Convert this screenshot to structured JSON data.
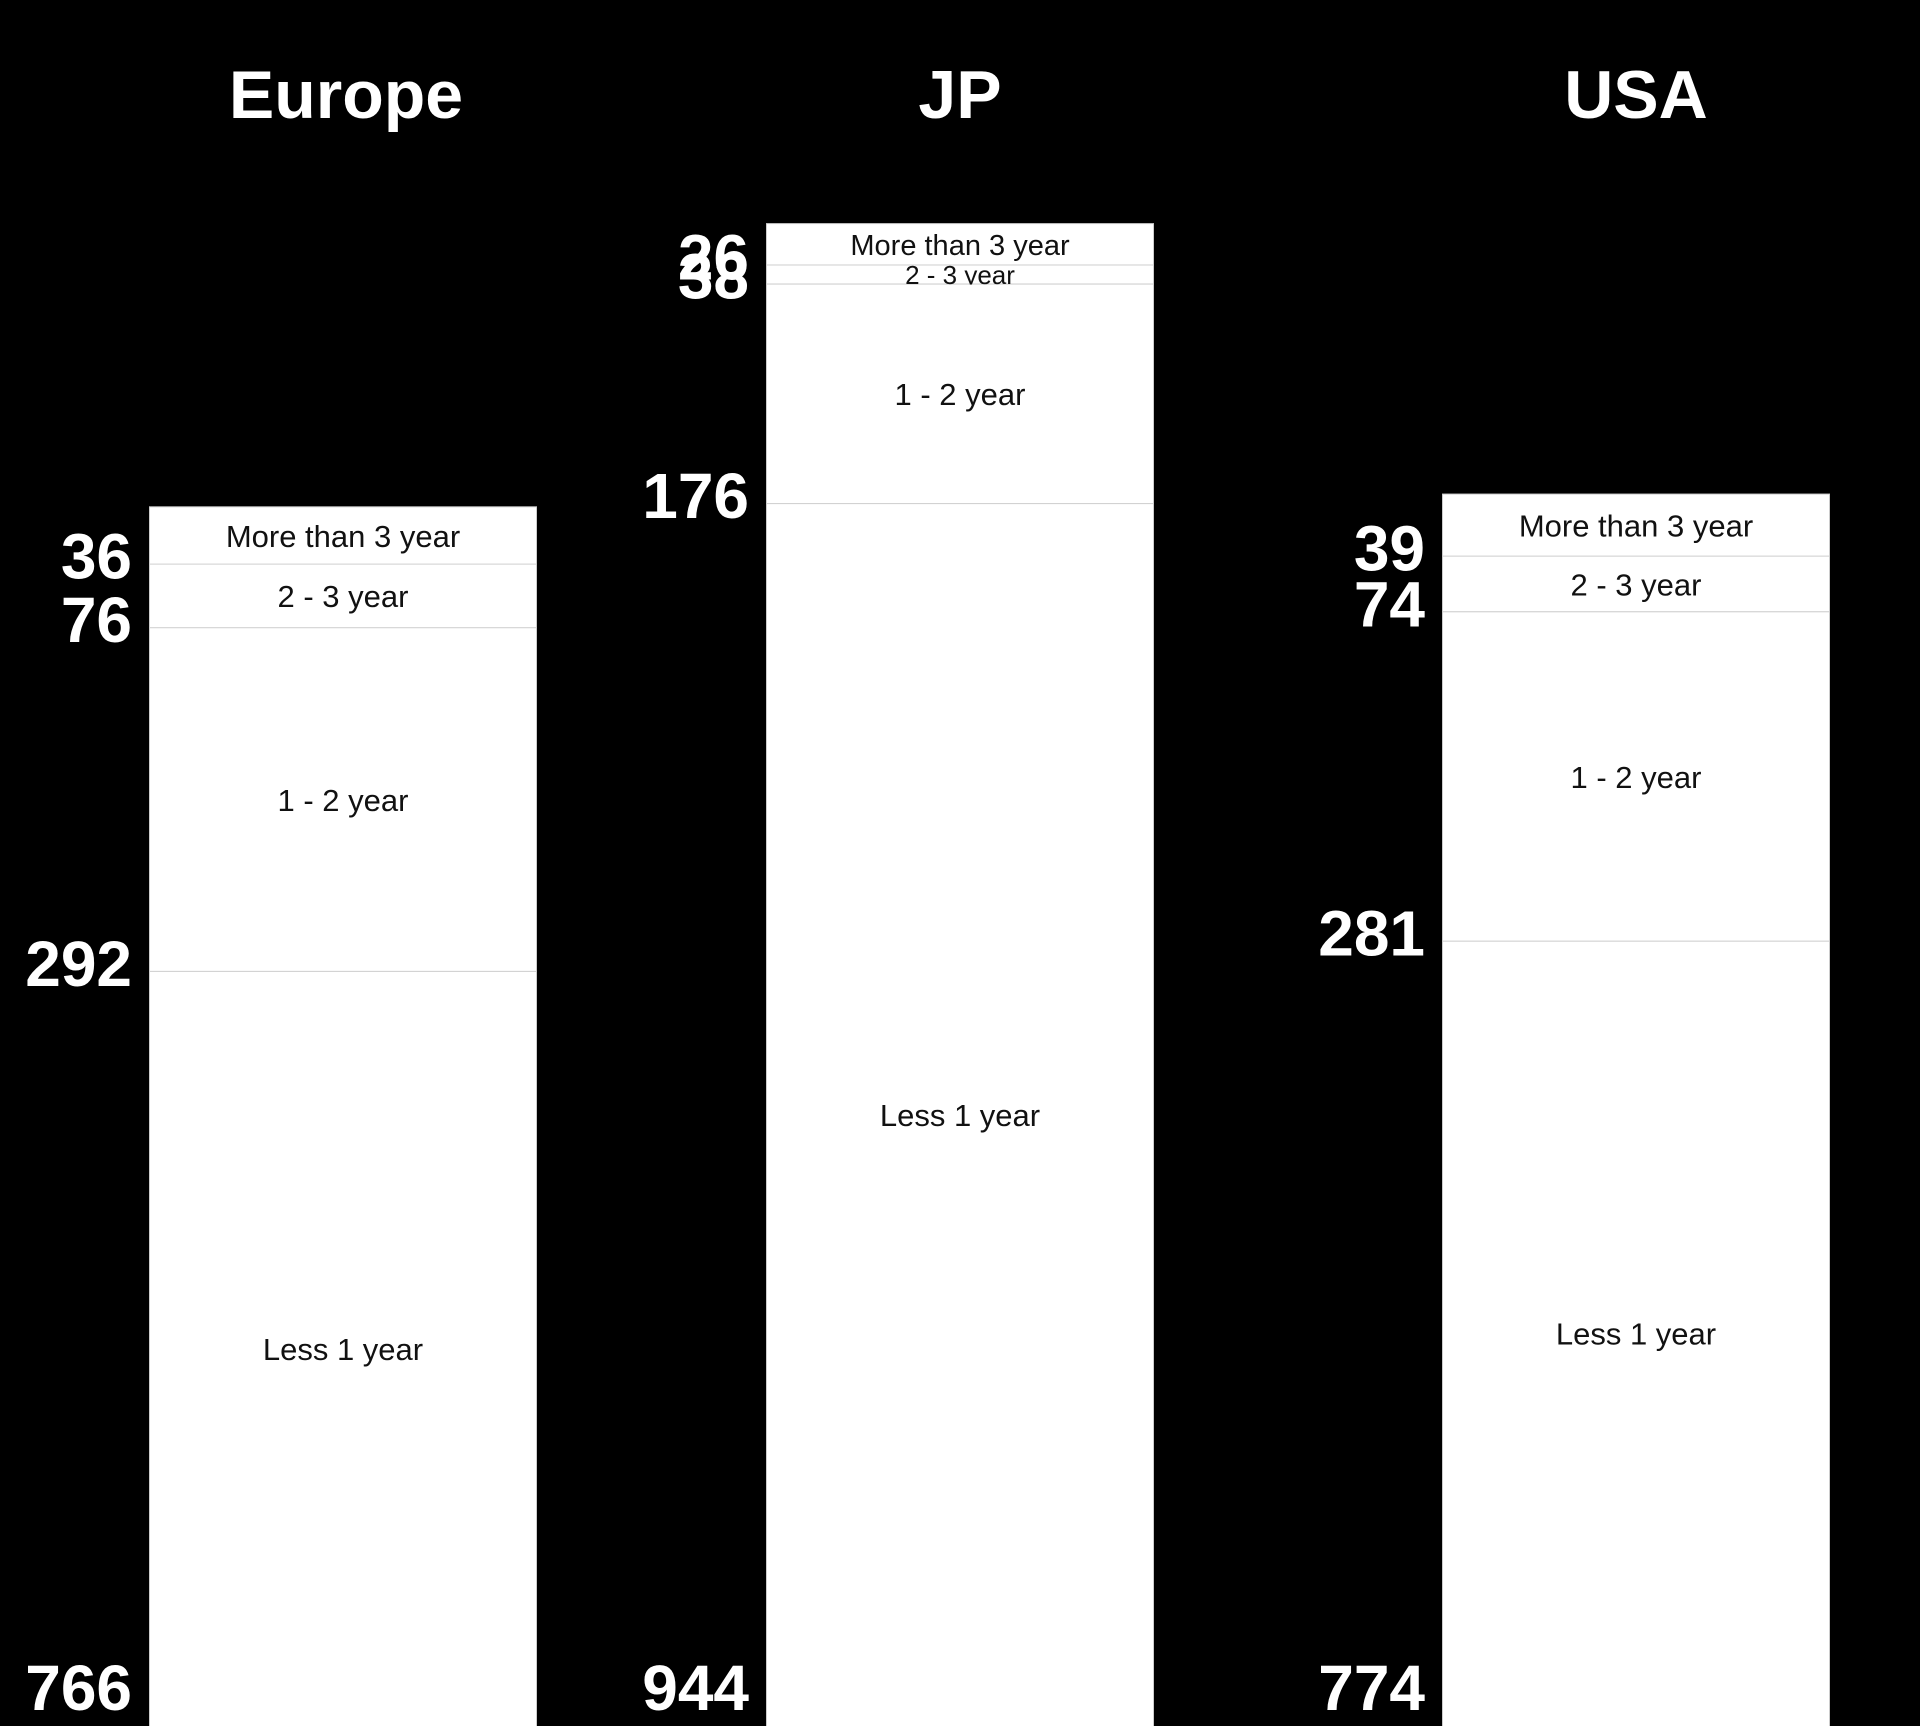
{
  "chart_data": {
    "type": "bar",
    "stacked": true,
    "panels": [
      {
        "title": "Europe",
        "segments": [
          {
            "label": "More than 3 year",
            "value": 36
          },
          {
            "label": "2 - 3 year",
            "value": 76
          },
          {
            "label": "1 - 2 year",
            "value": 292
          },
          {
            "label": "Less 1 year",
            "value": 766
          }
        ]
      },
      {
        "title": "JP",
        "segments": [
          {
            "label": "More than 3 year",
            "value": 26
          },
          {
            "label": "2 - 3 year",
            "value": 38
          },
          {
            "label": "1 - 2 year",
            "value": 176
          },
          {
            "label": "Less 1 year",
            "value": 944
          }
        ]
      },
      {
        "title": "USA",
        "segments": [
          {
            "label": "More than 3 year",
            "value": 39
          },
          {
            "label": "2 - 3 year",
            "value": 74
          },
          {
            "label": "1 - 2 year",
            "value": 281
          },
          {
            "label": "Less 1 year",
            "value": 774
          }
        ]
      }
    ],
    "colors": {
      "background": "#000000",
      "bar_fill": "#ffffff",
      "bar_border": "#cccccc",
      "segment_text": "#111111",
      "title_text": "#ffffff",
      "value_text": "#ffffff"
    },
    "grid": false,
    "legend": "none"
  }
}
